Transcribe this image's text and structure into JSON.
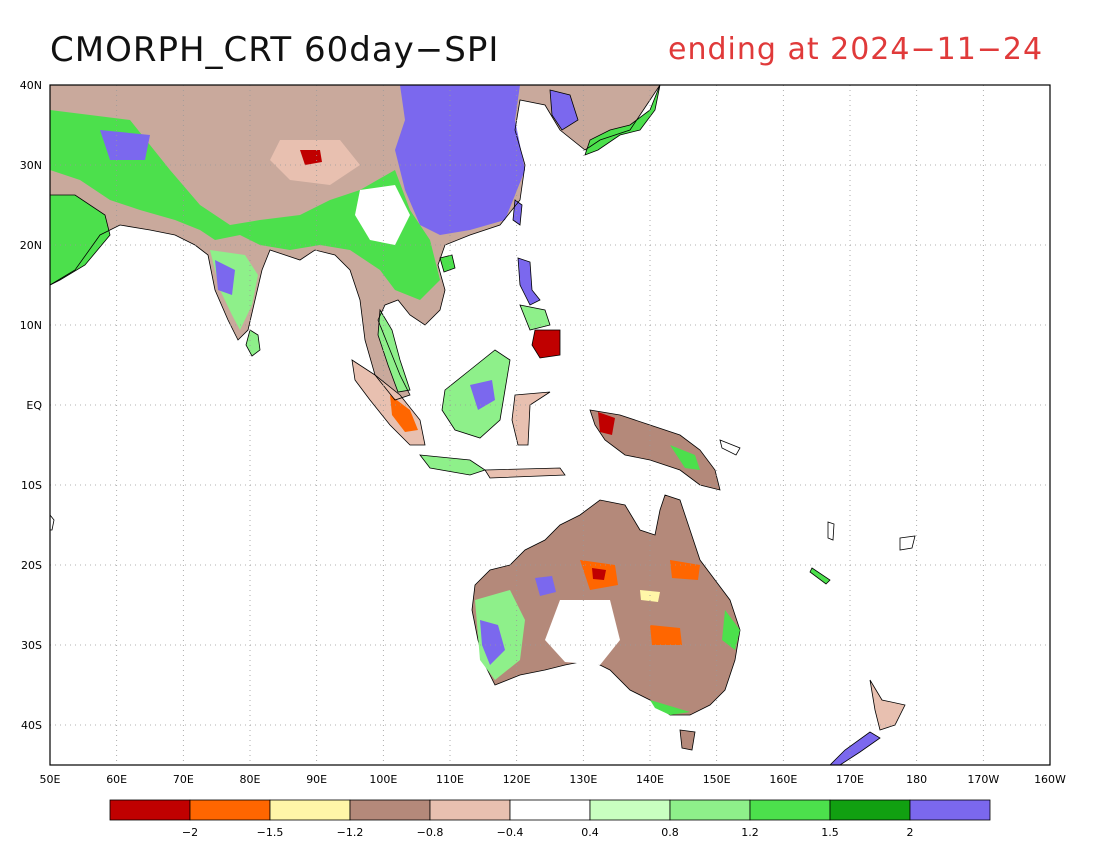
{
  "title": "CMORPH_CRT 60day−SPI",
  "subtitle": "ending at 2024−11−24",
  "map": {
    "lon_labels": [
      "50E",
      "60E",
      "70E",
      "80E",
      "90E",
      "100E",
      "110E",
      "120E",
      "130E",
      "140E",
      "150E",
      "160E",
      "170E",
      "180",
      "170W",
      "160W"
    ],
    "lat_labels": [
      "40N",
      "30N",
      "20N",
      "10N",
      "EQ",
      "10S",
      "20S",
      "30S",
      "40S"
    ],
    "lon_range": [
      50,
      200
    ],
    "lat_range": [
      -45,
      40
    ],
    "grid": "dotted"
  },
  "legend": {
    "colors": [
      "#c00000",
      "#ff6600",
      "#fff6a8",
      "#b4897a",
      "#e8c0b0",
      "#ffffff",
      "#c8ffc0",
      "#8ef08a",
      "#4ce04c",
      "#11a011",
      "#7b68ee"
    ],
    "labels": [
      "−2",
      "−1.5",
      "−1.2",
      "−0.8",
      "−0.4",
      "0.4",
      "0.8",
      "1.2",
      "1.5",
      "2"
    ]
  }
}
